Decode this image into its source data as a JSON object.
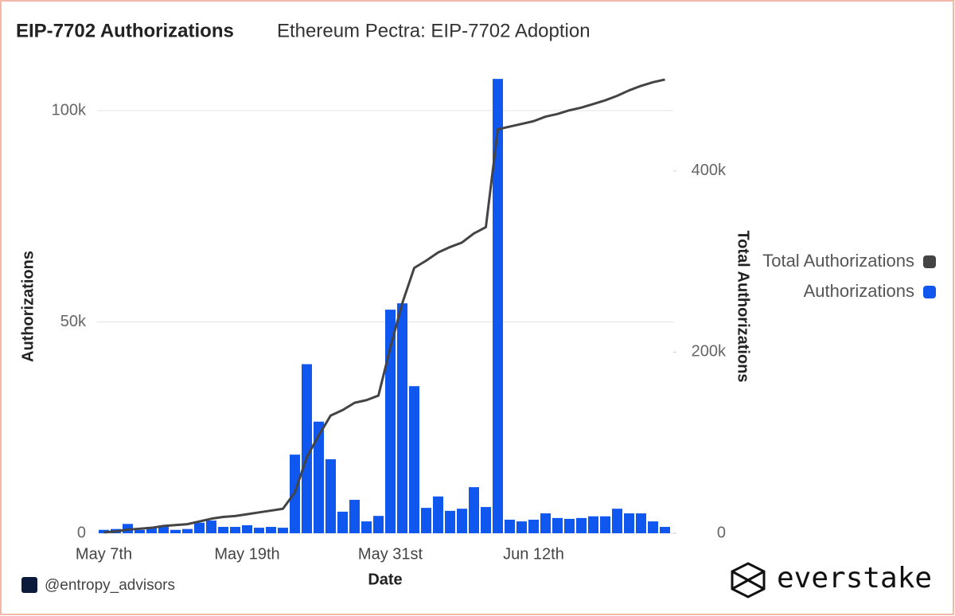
{
  "chart_data": {
    "type": "bar-line",
    "title": "EIP-7702 Authorizations",
    "subtitle": "Ethereum Pectra: EIP-7702 Adoption",
    "x_label": "Date",
    "y_label": "Authorizations",
    "y2_label": "Total Authorizations",
    "categories": [
      "May 7th",
      null,
      null,
      null,
      null,
      null,
      null,
      null,
      null,
      null,
      null,
      null,
      "May 19th",
      null,
      null,
      null,
      null,
      null,
      null,
      null,
      null,
      null,
      null,
      null,
      "May 31st",
      null,
      null,
      null,
      null,
      null,
      null,
      null,
      null,
      null,
      null,
      null,
      "Jun 12th",
      null,
      null,
      null,
      null,
      null,
      null,
      null,
      null,
      null,
      null,
      null
    ],
    "series": [
      {
        "name": "Total Authorizations",
        "color": "#444444",
        "axis": "y2",
        "values": [
          1000,
          2000,
          4000,
          5000,
          6000,
          8000,
          9000,
          10000,
          13000,
          16000,
          18000,
          19000,
          21000,
          23000,
          25000,
          27000,
          45000,
          84000,
          108000,
          130000,
          136000,
          144000,
          147000,
          152000,
          205000,
          254000,
          293000,
          301000,
          310000,
          316000,
          321000,
          331000,
          338000,
          446000,
          449000,
          452000,
          455000,
          460000,
          463000,
          467000,
          470000,
          474000,
          478000,
          483000,
          489000,
          494000,
          498000,
          501000
        ]
      },
      {
        "name": "Authorizations",
        "color": "#1057f0",
        "values": [
          800,
          1000,
          2200,
          800,
          1500,
          1500,
          800,
          1000,
          2500,
          3000,
          1500,
          1500,
          1900,
          1300,
          1500,
          1300,
          18600,
          40000,
          26400,
          17500,
          5100,
          7900,
          2800,
          4100,
          52900,
          54400,
          34800,
          6000,
          8700,
          5300,
          5800,
          10900,
          6200,
          107500,
          3200,
          2800,
          3200,
          4700,
          3600,
          3400,
          3600,
          4000,
          4000,
          5800,
          4700,
          4700,
          2800,
          1500
        ]
      }
    ],
    "ylim": [
      0,
      108000
    ],
    "yticks": [
      0,
      {
        "value": 50000,
        "label": "50k"
      },
      {
        "value": 100000,
        "label": "100k"
      }
    ],
    "y2lim": [
      0,
      504000
    ],
    "y2ticks": [
      0,
      {
        "value": 200000,
        "label": "200k"
      },
      {
        "value": 400000,
        "label": "400k"
      }
    ],
    "grid": true,
    "legend": "right"
  },
  "footer": {
    "handle": "@entropy_advisors",
    "brand": "everstake"
  }
}
